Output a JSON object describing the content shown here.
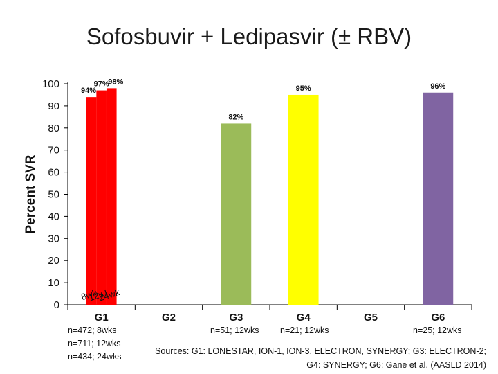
{
  "chart_data": {
    "type": "bar",
    "title": "Sofosbuvir + Ledipasvir (± RBV)",
    "ylabel": "Percent SVR",
    "xlabel": "",
    "ylim": [
      0,
      100
    ],
    "yticks": [
      0,
      10,
      20,
      30,
      40,
      50,
      60,
      70,
      80,
      90,
      100
    ],
    "grid": false,
    "categories": [
      "G1",
      "G2",
      "G3",
      "G4",
      "G5",
      "G6"
    ],
    "bars": [
      {
        "group": "G1",
        "sub": "8wk",
        "value": 94,
        "label": "94%",
        "color": "#ff0000"
      },
      {
        "group": "G1",
        "sub": "12wk",
        "value": 97,
        "label": "97%",
        "color": "#ff0000"
      },
      {
        "group": "G1",
        "sub": "24wk",
        "value": 98,
        "label": "98%",
        "color": "#ff0000"
      },
      {
        "group": "G3",
        "value": 82,
        "label": "82%",
        "color": "#9bbb59"
      },
      {
        "group": "G4",
        "value": 95,
        "label": "95%",
        "color": "#ffff00"
      },
      {
        "group": "G6",
        "value": 96,
        "label": "96%",
        "color": "#8064a2"
      }
    ],
    "captions": {
      "G1": [
        "n=472; 8wks",
        "n=711; 12wks",
        "n=434; 24wks"
      ],
      "G3": "n=51; 12wks",
      "G4": "n=21; 12wks",
      "G6": "n=25; 12wks"
    },
    "sources": [
      "Sources: G1: LONESTAR, ION-1, ION-3, ELECTRON, SYNERGY; G3: ELECTRON-2;",
      "G4: SYNERGY; G6: Gane et al. (AASLD 2014)"
    ]
  }
}
